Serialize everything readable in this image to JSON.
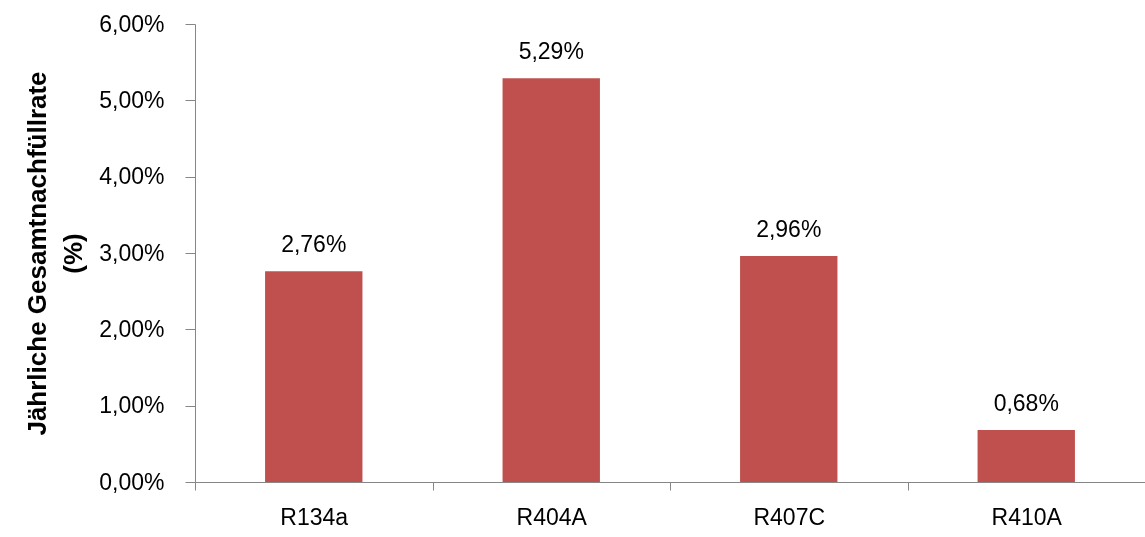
{
  "chart_data": {
    "type": "bar",
    "ylabel": "Jährliche Gesamtnachfüllrate (%)",
    "categories": [
      "R134a",
      "R404A",
      "R407C",
      "R410A"
    ],
    "values": [
      2.76,
      5.29,
      2.96,
      0.68
    ],
    "color": "#c0504d",
    "value_labels": [
      "2,76%",
      "5,29%",
      "2,96%",
      "0,68%"
    ],
    "ylim": [
      0,
      6
    ],
    "yticks": [
      {
        "value": 0,
        "label": "0,00%"
      },
      {
        "value": 1,
        "label": "1,00%"
      },
      {
        "value": 2,
        "label": "2,00%"
      },
      {
        "value": 3,
        "label": "3,00%"
      },
      {
        "value": 4,
        "label": "4,00%"
      },
      {
        "value": 5,
        "label": "5,00%"
      },
      {
        "value": 6,
        "label": "6,00%"
      }
    ]
  }
}
